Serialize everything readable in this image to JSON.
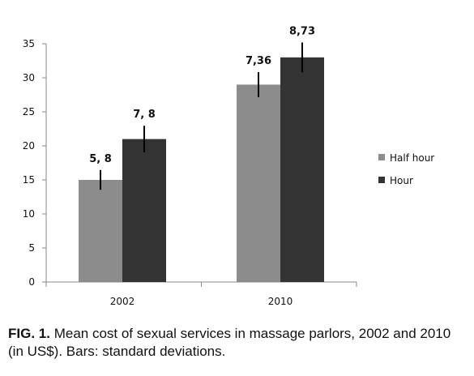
{
  "chart_data": {
    "type": "bar",
    "categories": [
      "2002",
      "2010"
    ],
    "series": [
      {
        "name": "Half hour",
        "values": [
          15,
          29
        ],
        "sd": [
          2.9,
          3.68
        ],
        "labels": [
          "5, 8",
          "7,36"
        ],
        "color": "#8c8c8c"
      },
      {
        "name": "Hour",
        "values": [
          21,
          33
        ],
        "sd": [
          3.9,
          4.365
        ],
        "labels": [
          "7, 8",
          "8,73"
        ],
        "color": "#333333"
      }
    ],
    "ylim": [
      0,
      35
    ],
    "yticks": [
      0,
      5,
      10,
      15,
      20,
      25,
      30,
      35
    ],
    "grid": false,
    "legend": "right",
    "title": "",
    "xlabel": "",
    "ylabel": ""
  },
  "caption": {
    "label": "FIG. 1.",
    "text": "Mean cost of sexual services in massage parlors, 2002 and 2010 (in US$). Bars: standard deviations."
  }
}
